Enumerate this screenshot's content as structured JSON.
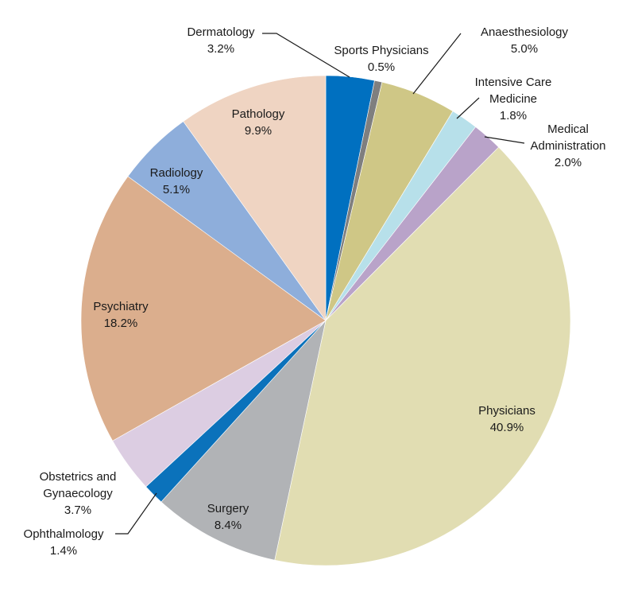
{
  "chart_data": {
    "type": "pie",
    "start_angle_deg": 0,
    "direction": "clockwise",
    "slices": [
      {
        "label": "Dermatology",
        "value": 3.2,
        "display": "3.2%",
        "color": "#0070c0",
        "label_placement": "outside"
      },
      {
        "label": "Sports Physicians",
        "value": 0.5,
        "display": "0.5%",
        "color": "#7f7f7f",
        "label_placement": "outside"
      },
      {
        "label": "Anaesthesiology",
        "value": 5.0,
        "display": "5.0%",
        "color": "#cfc786",
        "label_placement": "outside"
      },
      {
        "label": "Intensive Care Medicine",
        "label_lines": [
          "Intensive Care",
          "Medicine"
        ],
        "value": 1.8,
        "display": "1.8%",
        "color": "#b7e0ea",
        "label_placement": "outside"
      },
      {
        "label": "Medical Administration",
        "label_lines": [
          "Medical",
          "Administration"
        ],
        "value": 2.0,
        "display": "2.0%",
        "color": "#b9a3c9",
        "label_placement": "outside"
      },
      {
        "label": "Physicians",
        "value": 40.9,
        "display": "40.9%",
        "color": "#e1ddb2",
        "label_placement": "inside"
      },
      {
        "label": "Surgery",
        "value": 8.4,
        "display": "8.4%",
        "color": "#b1b3b6",
        "label_placement": "inside"
      },
      {
        "label": "Ophthalmology",
        "value": 1.4,
        "display": "1.4%",
        "color": "#0b72bb",
        "label_placement": "outside"
      },
      {
        "label": "Obstetrics and Gynaecology",
        "label_lines": [
          "Obstetrics and",
          "Gynaecology"
        ],
        "value": 3.7,
        "display": "3.7%",
        "color": "#dccde2",
        "label_placement": "outside"
      },
      {
        "label": "Psychiatry",
        "value": 18.2,
        "display": "18.2%",
        "color": "#dbae8d",
        "label_placement": "inside"
      },
      {
        "label": "Radiology",
        "value": 5.1,
        "display": "5.1%",
        "color": "#8eaedb",
        "label_placement": "inside"
      },
      {
        "label": "Pathology",
        "value": 9.9,
        "display": "9.9%",
        "color": "#efd4c2",
        "label_placement": "inside"
      }
    ]
  }
}
